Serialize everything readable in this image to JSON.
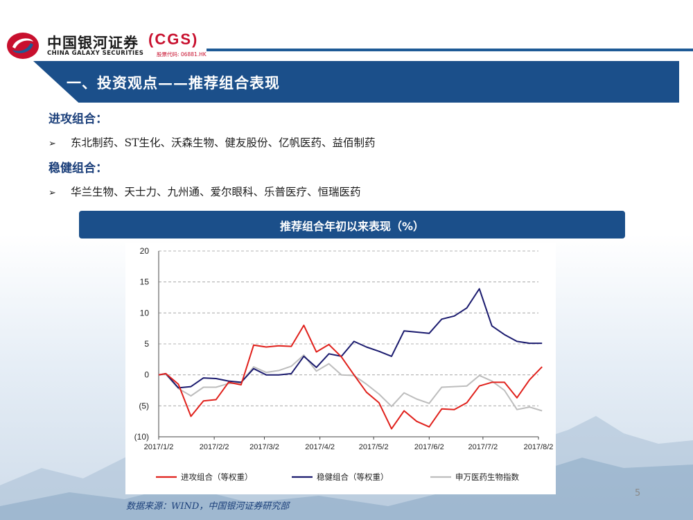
{
  "header": {
    "logo_cn": "中国银河证券",
    "logo_en": "CHINA GALAXY SECURITIES",
    "logo_cgs": "(CGS)",
    "logo_code": "股票代码: 06881.HK"
  },
  "title": "一、投资观点——推荐组合表现",
  "sections": [
    {
      "heading": "进攻组合：",
      "bullet": "东北制药、ST生化、沃森生物、健友股份、亿帆医药、益佰制药"
    },
    {
      "heading": "稳健组合：",
      "bullet": "华兰生物、天士力、九州通、爱尔眼科、乐普医疗、恒瑞医药"
    }
  ],
  "bullet_icon": "arrow-bullet-icon",
  "chart_banner": "推荐组合年初以来表现（%）",
  "source": "数据来源：WIND，中国银河证券研究部",
  "page_number": "5",
  "chart_data": {
    "type": "line",
    "title": "推荐组合年初以来表现（%）",
    "xlabel": "",
    "ylabel": "",
    "ylim": [
      -10,
      20
    ],
    "yticks": [
      20,
      15,
      10,
      5,
      0,
      -5,
      -10
    ],
    "ytick_labels": [
      "20",
      "15",
      "10",
      "5",
      "0",
      "(5)",
      "(10)"
    ],
    "x_tick_labels": [
      "2017/1/2",
      "2017/2/2",
      "2017/3/2",
      "2017/4/2",
      "2017/5/2",
      "2017/6/2",
      "2017/7/2",
      "2017/8/2"
    ],
    "grid": "horizontal dashed",
    "legend_position": "bottom",
    "x_dates": [
      "2017-01-02",
      "2017-01-06",
      "2017-01-13",
      "2017-01-20",
      "2017-01-27",
      "2017-02-03",
      "2017-02-10",
      "2017-02-17",
      "2017-02-24",
      "2017-03-03",
      "2017-03-10",
      "2017-03-17",
      "2017-03-24",
      "2017-03-31",
      "2017-04-07",
      "2017-04-14",
      "2017-04-21",
      "2017-04-28",
      "2017-05-05",
      "2017-05-12",
      "2017-05-19",
      "2017-05-26",
      "2017-06-02",
      "2017-06-09",
      "2017-06-16",
      "2017-06-23",
      "2017-06-30",
      "2017-07-07",
      "2017-07-14",
      "2017-07-21",
      "2017-07-28",
      "2017-08-04"
    ],
    "series": [
      {
        "name": "进攻组合（等权重）",
        "color": "#e0201b",
        "values": [
          0,
          0.2,
          -1.5,
          -6.7,
          -4.2,
          -4.0,
          -1.2,
          -1.6,
          4.8,
          4.5,
          4.7,
          4.6,
          8.0,
          3.7,
          4.9,
          2.9,
          0.0,
          -2.8,
          -4.5,
          -8.7,
          -5.8,
          -7.5,
          -8.4,
          -5.5,
          -5.6,
          -4.5,
          -1.8,
          -1.2,
          -1.2,
          -3.7,
          -0.8,
          1.3
        ]
      },
      {
        "name": "稳健组合（等权重）",
        "color": "#1a1a6e",
        "values": [
          0,
          0.2,
          -2.1,
          -1.9,
          -0.5,
          -0.6,
          -1.0,
          -1.2,
          1.0,
          0.0,
          0.0,
          0.2,
          3.0,
          1.2,
          3.4,
          3.0,
          5.4,
          4.5,
          3.8,
          3.0,
          7.1,
          6.9,
          6.7,
          9.0,
          9.5,
          10.8,
          13.9,
          7.9,
          6.5,
          5.4,
          5.1,
          5.1
        ]
      },
      {
        "name": "申万医药生物指数",
        "color": "#bdbdbd",
        "values": [
          0,
          0.1,
          -2.2,
          -3.4,
          -2.0,
          -2.0,
          -1.4,
          -1.3,
          1.3,
          0.4,
          0.7,
          1.4,
          3.2,
          0.6,
          1.8,
          0.0,
          -0.1,
          -1.5,
          -3.1,
          -5.1,
          -2.9,
          -3.9,
          -4.6,
          -2.0,
          -1.9,
          -1.8,
          -0.1,
          -1.0,
          -2.5,
          -5.6,
          -5.2,
          -5.8
        ]
      }
    ]
  }
}
